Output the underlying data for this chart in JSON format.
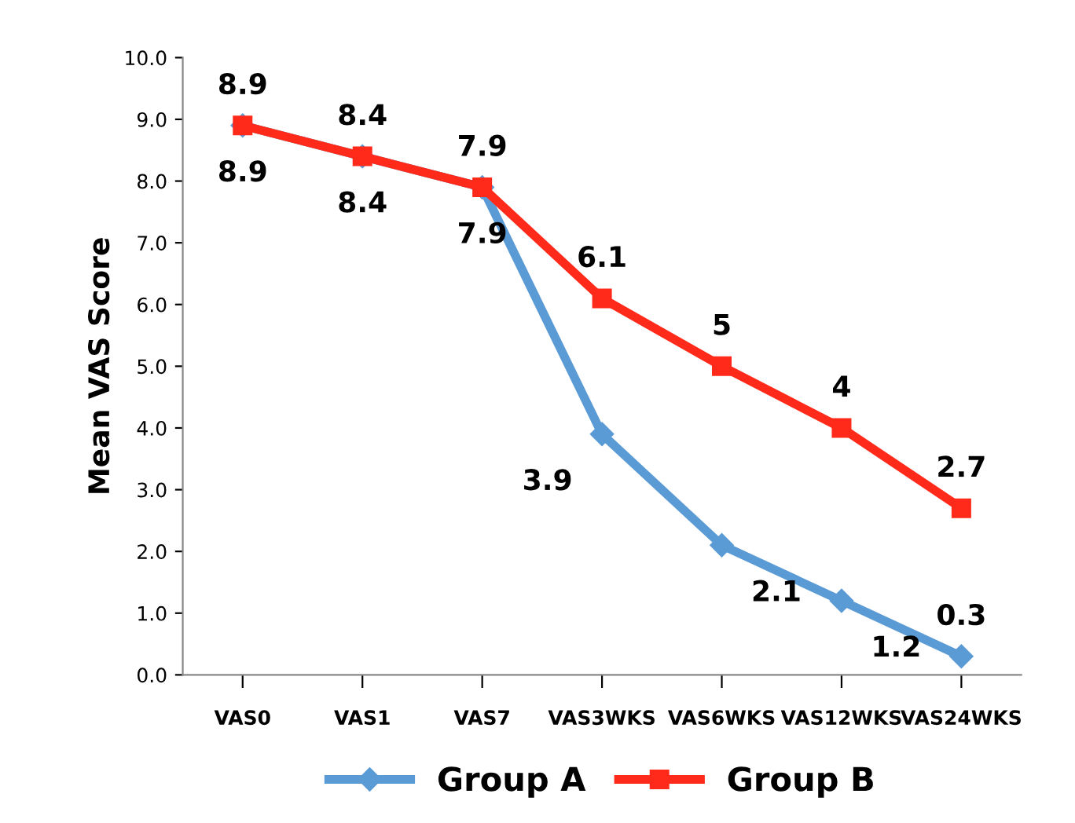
{
  "chart_data": {
    "type": "line",
    "ylabel": "Mean VAS Score",
    "categories": [
      "VAS0",
      "VAS1",
      "VAS7",
      "VAS3WKS",
      "VAS6WKS",
      "VAS12WKS",
      "VAS24WKS"
    ],
    "series": [
      {
        "name": "Group A",
        "color": "#5b9bd5",
        "marker": "diamond",
        "values": [
          8.9,
          8.4,
          7.9,
          3.9,
          2.1,
          1.2,
          0.3
        ],
        "value_labels": [
          "8.9",
          "8.4",
          "7.9",
          "3.9",
          "2.1",
          "1.2",
          "0.3"
        ]
      },
      {
        "name": "Group B",
        "color": "#ff2a1a",
        "marker": "square",
        "values": [
          8.9,
          8.4,
          7.9,
          6.1,
          5.0,
          4.0,
          2.7
        ],
        "value_labels": [
          "8.9",
          "8.4",
          "7.9",
          "6.1",
          "5",
          "4",
          "2.7"
        ]
      }
    ],
    "ylim": [
      0,
      10
    ],
    "yticks": [
      {
        "value": 0,
        "label": "0.0"
      },
      {
        "value": 1,
        "label": "1.0"
      },
      {
        "value": 2,
        "label": "2.0"
      },
      {
        "value": 3,
        "label": "3.0"
      },
      {
        "value": 4,
        "label": "4.0"
      },
      {
        "value": 5,
        "label": "5.0"
      },
      {
        "value": 6,
        "label": "6.0"
      },
      {
        "value": 7,
        "label": "7.0"
      },
      {
        "value": 8,
        "label": "8.0"
      },
      {
        "value": 9,
        "label": "9.0"
      },
      {
        "value": 10,
        "label": "10.0"
      }
    ],
    "legend": "bottom",
    "grid": false,
    "line_style": "solid"
  }
}
